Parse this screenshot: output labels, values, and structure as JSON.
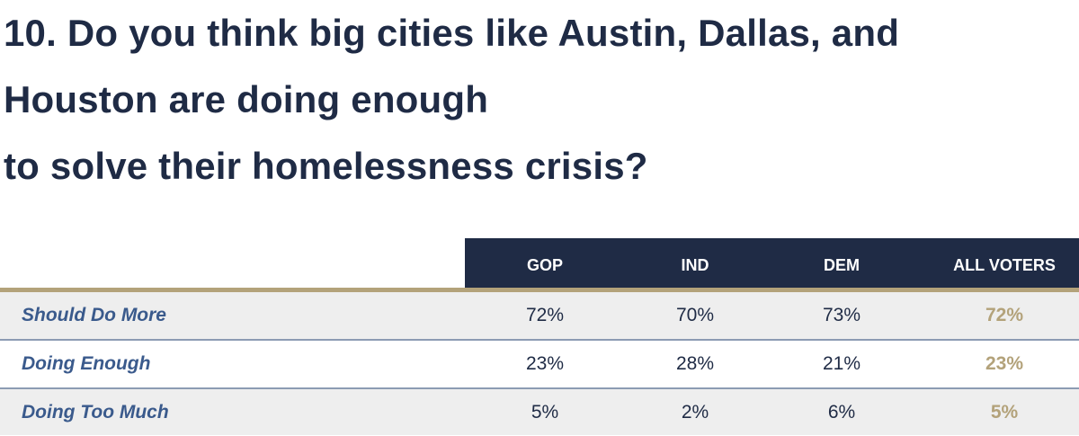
{
  "title_lines": [
    "10. Do you think big cities like Austin, Dallas, and",
    "Houston are doing enough",
    "to solve their homelessness crisis?"
  ],
  "colors": {
    "navy": "#1f2b45",
    "gold": "#b3a27a",
    "label_blue": "#3a5a8c",
    "row_shade": "#eeeeee",
    "row_rule": "#8c9bb3"
  },
  "chart_data": {
    "type": "table",
    "title": "10. Do you think big cities like Austin, Dallas, and Houston are doing enough to solve their homelessness crisis?",
    "columns": [
      "GOP",
      "IND",
      "DEM",
      "ALL VOTERS"
    ],
    "rows": [
      {
        "label": "Should Do More",
        "values": [
          "72%",
          "70%",
          "73%",
          "72%"
        ]
      },
      {
        "label": "Doing Enough",
        "values": [
          "23%",
          "28%",
          "21%",
          "23%"
        ]
      },
      {
        "label": "Doing Too Much",
        "values": [
          "5%",
          "2%",
          "6%",
          "5%"
        ]
      }
    ]
  }
}
